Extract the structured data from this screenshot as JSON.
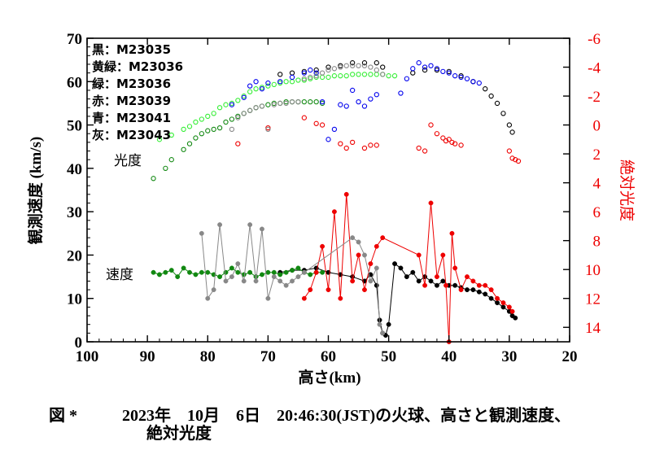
{
  "chart_data": {
    "type": "scatter",
    "xlabel": "高さ(km)",
    "ylabel_left": "観測速度 (km/s)",
    "ylabel_right": "絶対光度",
    "xlim": [
      100,
      20
    ],
    "ylim_left": [
      0,
      70
    ],
    "ylim_right": [
      -6,
      15
    ],
    "x_ticks": [
      "100",
      "90",
      "80",
      "70",
      "60",
      "50",
      "40",
      "30",
      "20"
    ],
    "y_ticks_left": [
      "0",
      "10",
      "20",
      "30",
      "40",
      "50",
      "60",
      "70"
    ],
    "y_ticks_right": [
      "-6",
      "-4",
      "-2",
      "0",
      "2",
      "4",
      "6",
      "8",
      "10",
      "12",
      "14"
    ],
    "legend": [
      {
        "text": "黒：M23035",
        "color": "#000000"
      },
      {
        "text": "黄緑：M23036",
        "color": "#33ee33"
      },
      {
        "text": "緑：M23036",
        "color": "#118811"
      },
      {
        "text": "赤：M23039",
        "color": "#ee0000"
      },
      {
        "text": "青：M23041",
        "color": "#0000ee"
      },
      {
        "text": "灰：M23043",
        "color": "#888888"
      }
    ],
    "annotations": [
      "光度",
      "速度"
    ],
    "series": [
      {
        "name": "黒：M23035",
        "kind": "brightness",
        "color": "#000000",
        "x": [
          68,
          66,
          64,
          62,
          60,
          58,
          56,
          54,
          52,
          51,
          46,
          44,
          42,
          40,
          38,
          36,
          34,
          33,
          32,
          31,
          30,
          29.5
        ],
        "y": [
          -3.5,
          -3.6,
          -3.7,
          -3.8,
          -4.0,
          -4.1,
          -4.3,
          -4.3,
          -4.3,
          -4.0,
          -3.6,
          -3.8,
          -3.8,
          -3.7,
          -3.4,
          -3.0,
          -2.5,
          -2.0,
          -1.5,
          -0.8,
          0.0,
          0.5
        ]
      },
      {
        "name": "黄緑：M23036",
        "kind": "brightness",
        "color": "#33ee33",
        "x": [
          88,
          86,
          84,
          83,
          82,
          81,
          80,
          79,
          78,
          77,
          76,
          75,
          74,
          73,
          72,
          71,
          70,
          69,
          68,
          67,
          66,
          65,
          64,
          63,
          62,
          61,
          60,
          59,
          58,
          57,
          56,
          55,
          54,
          53,
          52,
          51,
          50,
          49
        ],
        "y": [
          1.0,
          0.7,
          0.3,
          0.1,
          -0.2,
          -0.4,
          -0.6,
          -0.8,
          -1.2,
          -1.4,
          -1.5,
          -1.7,
          -2.0,
          -2.3,
          -2.5,
          -2.6,
          -2.7,
          -2.8,
          -2.9,
          -3.0,
          -3.0,
          -3.1,
          -3.1,
          -3.2,
          -3.3,
          -3.3,
          -3.3,
          -3.4,
          -3.4,
          -3.4,
          -3.5,
          -3.5,
          -3.5,
          -3.5,
          -3.5,
          -3.5,
          -3.4,
          -3.4
        ]
      },
      {
        "name": "緑：M23036",
        "kind": "brightness",
        "color": "#118811",
        "x": [
          89,
          87,
          86,
          84,
          83,
          82,
          81,
          80,
          79,
          78,
          77,
          76,
          75,
          74,
          73,
          72,
          71,
          70,
          69,
          68,
          67,
          66,
          65,
          64,
          63,
          62,
          61
        ],
        "y": [
          3.7,
          3.0,
          2.4,
          1.7,
          1.3,
          0.9,
          0.6,
          0.4,
          0.3,
          0.2,
          -0.2,
          -0.4,
          -0.6,
          -0.8,
          -1.0,
          -1.2,
          -1.3,
          -1.4,
          -1.5,
          -1.5,
          -1.6,
          -1.6,
          -1.6,
          -1.6,
          -1.6,
          -1.6,
          -1.5
        ]
      },
      {
        "name": "赤：M23039",
        "kind": "brightness",
        "color": "#ee0000",
        "x": [
          75,
          70,
          64,
          62,
          61,
          58,
          57,
          56,
          54,
          53,
          52,
          45,
          44,
          43,
          42,
          41,
          40.5,
          40,
          39.5,
          39,
          38,
          30,
          29.5,
          29,
          28.5
        ],
        "y": [
          1.3,
          0.2,
          -0.5,
          -0.1,
          0.0,
          1.3,
          1.6,
          1.2,
          1.6,
          1.4,
          1.4,
          1.6,
          1.8,
          0.0,
          0.6,
          0.9,
          1.1,
          1.0,
          1.2,
          1.3,
          1.4,
          1.8,
          2.3,
          2.4,
          2.5
        ]
      },
      {
        "name": "青：M23041",
        "kind": "brightness",
        "color": "#0000ee",
        "x": [
          76,
          74,
          73,
          72,
          71,
          70,
          68,
          66,
          64,
          63,
          62,
          61,
          60,
          59,
          58,
          57,
          56,
          55,
          54,
          53,
          52,
          48,
          47,
          46,
          45,
          44,
          43,
          42,
          41,
          40,
          39,
          38,
          37,
          36,
          35
        ],
        "y": [
          -1.4,
          -1.9,
          -2.7,
          -3.0,
          -2.5,
          -2.9,
          -3.0,
          -3.3,
          -3.6,
          -3.8,
          -3.6,
          -1.6,
          1.0,
          0.3,
          -1.4,
          -1.3,
          -2.4,
          -1.6,
          -1.3,
          -1.8,
          -2.1,
          -2.2,
          -3.2,
          -3.9,
          -4.3,
          -4.0,
          -4.1,
          -3.9,
          -3.7,
          -3.6,
          -3.4,
          -3.3,
          -3.2,
          -3.0,
          -2.9
        ]
      },
      {
        "name": "灰：M23043",
        "kind": "brightness",
        "color": "#888888",
        "x": [
          76,
          75,
          74,
          73,
          72,
          71,
          70,
          69,
          68,
          67,
          66,
          65,
          64,
          63,
          62,
          61,
          60,
          59,
          58,
          57,
          56,
          55,
          54,
          53,
          52,
          51
        ],
        "y": [
          0.3,
          -0.5,
          -0.8,
          -1.0,
          -1.2,
          -1.3,
          0.3,
          -1.4,
          -1.5,
          -1.5,
          -1.6,
          -1.6,
          -3.2,
          -3.3,
          -3.4,
          -3.6,
          -3.8,
          -3.9,
          -4.0,
          -4.1,
          -4.1,
          -4.1,
          -4.1,
          -4.0,
          -3.8,
          -3.5
        ]
      },
      {
        "name": "黒：M23035",
        "kind": "velocity",
        "color": "#000000",
        "connected": true,
        "x": [
          68,
          66,
          64,
          62,
          60,
          58,
          56,
          54,
          53,
          52,
          51.5,
          51,
          50.5,
          50,
          49,
          48,
          47,
          46,
          45,
          44,
          43,
          42,
          41,
          40,
          39,
          38,
          37,
          36,
          35,
          34,
          33,
          32,
          31,
          30,
          29.5,
          29
        ],
        "y": [
          16,
          16.5,
          16.5,
          17,
          16,
          15.5,
          15,
          14,
          15.5,
          13,
          5,
          2,
          1.5,
          4,
          18,
          17,
          15,
          16,
          14,
          15,
          14,
          13,
          14,
          13,
          13,
          12.5,
          12,
          12,
          11.5,
          11,
          10,
          9,
          8,
          7,
          6,
          5.5
        ]
      },
      {
        "name": "緑：M23036",
        "kind": "velocity",
        "color": "#118811",
        "connected": true,
        "x": [
          89,
          88,
          87,
          86,
          85,
          84,
          83,
          82,
          81,
          80,
          79,
          78,
          77,
          76,
          75,
          74,
          73,
          72,
          71,
          70,
          69,
          68,
          67,
          66,
          65,
          64,
          63,
          62,
          61
        ],
        "y": [
          16,
          15.5,
          16,
          16.5,
          15,
          17,
          16,
          15.5,
          16,
          16,
          15.5,
          15,
          16,
          17,
          16,
          15.5,
          16,
          15,
          15.5,
          16,
          16,
          15.5,
          16,
          16.5,
          17,
          16,
          15.5,
          16,
          16
        ]
      },
      {
        "name": "赤：M23039",
        "kind": "velocity",
        "color": "#ee0000",
        "connected": true,
        "x": [
          64,
          63,
          62,
          61,
          60,
          59,
          58,
          57,
          56,
          55,
          54,
          53,
          52,
          51,
          45,
          44,
          43,
          42,
          41,
          40.5,
          40,
          39.5,
          39,
          38,
          37,
          36,
          35,
          34,
          33,
          32,
          31,
          30,
          29.5
        ],
        "y": [
          10,
          12,
          16,
          22,
          12,
          30,
          10,
          34,
          14,
          20,
          12,
          18,
          22,
          24,
          20,
          13,
          32,
          15,
          20,
          13,
          0,
          25,
          17,
          12,
          15,
          14,
          13,
          13,
          12,
          10,
          9,
          8,
          7
        ]
      },
      {
        "name": "灰：M23043",
        "kind": "velocity",
        "color": "#888888",
        "connected": true,
        "x": [
          81,
          80,
          79,
          78,
          77,
          76,
          75,
          74,
          73,
          72,
          71,
          70,
          69,
          68,
          67,
          66,
          65,
          64,
          56,
          55,
          54,
          53,
          52,
          51.5,
          51
        ],
        "y": [
          25,
          10,
          12,
          27,
          14,
          15,
          18,
          14,
          27,
          14,
          26,
          10,
          15,
          14,
          13,
          14,
          15,
          16,
          24,
          23,
          20,
          14,
          17,
          4,
          2
        ]
      }
    ]
  }
}
